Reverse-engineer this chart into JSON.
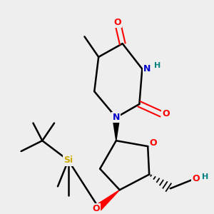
{
  "background_color": "#eeeeee",
  "bond_color": "#000000",
  "atom_colors": {
    "O": "#ff0000",
    "N": "#0000cc",
    "H": "#008080",
    "Si": "#ccaa00",
    "C": "#000000"
  },
  "figsize": [
    3.0,
    3.0
  ],
  "dpi": 100
}
